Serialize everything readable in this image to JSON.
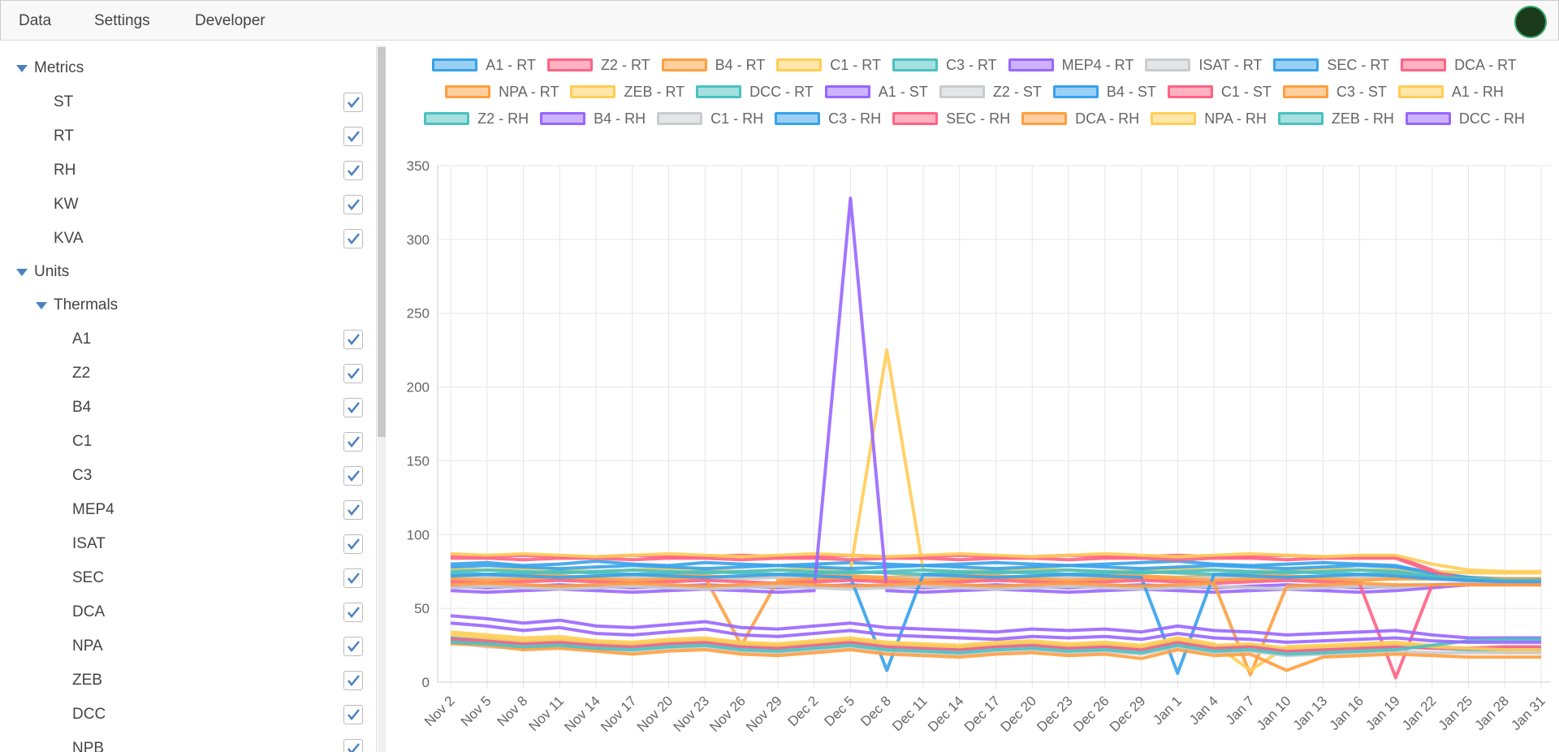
{
  "menu": [
    "Data",
    "Settings",
    "Developer"
  ],
  "sidebar": {
    "metrics": {
      "label": "Metrics",
      "items": [
        "ST",
        "RT",
        "RH",
        "KW",
        "KVA"
      ]
    },
    "units": {
      "label": "Units",
      "groups": [
        {
          "label": "Thermals",
          "items": [
            "A1",
            "Z2",
            "B4",
            "C1",
            "C3",
            "MEP4",
            "ISAT",
            "SEC",
            "DCA",
            "NPA",
            "ZEB",
            "DCC",
            "NPB"
          ]
        }
      ]
    }
  },
  "chart_data": {
    "type": "line",
    "categories": [
      "Nov 2",
      "Nov 5",
      "Nov 8",
      "Nov 11",
      "Nov 14",
      "Nov 17",
      "Nov 20",
      "Nov 23",
      "Nov 26",
      "Nov 29",
      "Dec 2",
      "Dec 5",
      "Dec 8",
      "Dec 11",
      "Dec 14",
      "Dec 17",
      "Dec 20",
      "Dec 23",
      "Dec 26",
      "Dec 29",
      "Jan 1",
      "Jan 4",
      "Jan 7",
      "Jan 10",
      "Jan 13",
      "Jan 16",
      "Jan 19",
      "Jan 22",
      "Jan 25",
      "Jan 28",
      "Jan 31"
    ],
    "ylim": [
      0,
      350
    ],
    "yticks": [
      0,
      50,
      100,
      150,
      200,
      250,
      300,
      350
    ],
    "grid": true,
    "series": [
      {
        "name": "A1 - RT",
        "color": "#36a2eb",
        "values": [
          80,
          81,
          79,
          80,
          82,
          80,
          79,
          81,
          80,
          79,
          80,
          81,
          80,
          79,
          80,
          81,
          80,
          79,
          80,
          81,
          82,
          80,
          79,
          80,
          81,
          80,
          79,
          74,
          71,
          69,
          69
        ]
      },
      {
        "name": "Z2 - RT",
        "color": "#ff6384",
        "values": [
          86,
          85,
          86,
          85,
          85,
          86,
          85,
          85,
          86,
          85,
          85,
          86,
          85,
          85,
          86,
          85,
          85,
          86,
          85,
          85,
          86,
          85,
          85,
          86,
          85,
          85,
          85,
          76,
          70,
          67,
          66
        ]
      },
      {
        "name": "B4 - RT",
        "color": "#ff9f40",
        "values": [
          72,
          71,
          73,
          72,
          71,
          72,
          73,
          72,
          71,
          72,
          73,
          72,
          71,
          72,
          73,
          72,
          71,
          72,
          73,
          72,
          71,
          72,
          73,
          72,
          71,
          72,
          72,
          71,
          70,
          70,
          70
        ]
      },
      {
        "name": "C1 - RT",
        "color": "#ffcd56",
        "values": [
          77,
          76,
          77,
          76,
          75,
          76,
          77,
          76,
          75,
          76,
          77,
          76,
          225,
          76,
          75,
          76,
          77,
          76,
          75,
          76,
          77,
          76,
          75,
          76,
          77,
          76,
          76,
          75,
          74,
          74,
          74
        ]
      },
      {
        "name": "C3 - RT",
        "color": "#4bc0c0",
        "values": [
          74,
          73,
          74,
          75,
          74,
          73,
          74,
          75,
          74,
          73,
          74,
          75,
          74,
          73,
          74,
          75,
          74,
          73,
          74,
          75,
          74,
          73,
          74,
          75,
          74,
          73,
          74,
          72,
          70,
          69,
          69
        ]
      },
      {
        "name": "MEP4 - RT",
        "color": "#9966ff",
        "values": [
          65,
          64,
          65,
          66,
          65,
          64,
          65,
          66,
          65,
          64,
          65,
          66,
          65,
          64,
          65,
          66,
          65,
          64,
          65,
          66,
          65,
          64,
          65,
          66,
          65,
          64,
          65,
          66,
          67,
          68,
          68
        ]
      },
      {
        "name": "ISAT - RT",
        "color": "#c9cbcf",
        "values": [
          70,
          71,
          70,
          69,
          70,
          71,
          70,
          69,
          70,
          71,
          70,
          69,
          70,
          71,
          70,
          69,
          70,
          71,
          70,
          69,
          70,
          71,
          70,
          69,
          70,
          71,
          70,
          70,
          69,
          69,
          69
        ]
      },
      {
        "name": "SEC - RT",
        "color": "#36a2eb",
        "values": [
          78,
          79,
          78,
          77,
          78,
          79,
          78,
          77,
          78,
          79,
          78,
          77,
          78,
          79,
          78,
          77,
          78,
          79,
          78,
          77,
          78,
          79,
          78,
          77,
          78,
          79,
          78,
          74,
          71,
          70,
          70
        ]
      },
      {
        "name": "DCA - RT",
        "color": "#ff6384",
        "values": [
          84,
          84,
          83,
          84,
          84,
          83,
          84,
          84,
          83,
          84,
          84,
          83,
          84,
          84,
          83,
          84,
          84,
          83,
          84,
          84,
          83,
          84,
          84,
          83,
          84,
          84,
          84,
          75,
          69,
          67,
          66
        ]
      },
      {
        "name": "NPA - RT",
        "color": "#ff9f40",
        "values": [
          70,
          69,
          70,
          71,
          70,
          69,
          70,
          71,
          25,
          69,
          70,
          71,
          70,
          69,
          70,
          71,
          70,
          69,
          70,
          71,
          70,
          69,
          70,
          71,
          70,
          69,
          70,
          70,
          70,
          70,
          70
        ]
      },
      {
        "name": "ZEB - RT",
        "color": "#ffcd56",
        "values": [
          87,
          86,
          87,
          86,
          85,
          86,
          87,
          86,
          85,
          86,
          87,
          86,
          85,
          86,
          87,
          86,
          85,
          86,
          87,
          86,
          85,
          86,
          87,
          86,
          85,
          86,
          86,
          80,
          76,
          75,
          75
        ]
      },
      {
        "name": "DCC - RT",
        "color": "#4bc0c0",
        "values": [
          75,
          76,
          75,
          74,
          75,
          76,
          75,
          74,
          75,
          76,
          75,
          74,
          75,
          76,
          75,
          74,
          75,
          76,
          75,
          74,
          75,
          76,
          75,
          74,
          75,
          76,
          75,
          72,
          70,
          69,
          69
        ]
      },
      {
        "name": "A1 - ST",
        "color": "#9966ff",
        "values": [
          62,
          61,
          62,
          63,
          62,
          61,
          62,
          63,
          62,
          61,
          62,
          328,
          62,
          61,
          62,
          63,
          62,
          61,
          62,
          63,
          62,
          61,
          62,
          63,
          62,
          61,
          62,
          64,
          66,
          67,
          67
        ]
      },
      {
        "name": "Z2 - ST",
        "color": "#c9cbcf",
        "values": [
          64,
          65,
          64,
          63,
          64,
          65,
          64,
          63,
          64,
          65,
          64,
          63,
          64,
          65,
          64,
          63,
          64,
          65,
          64,
          63,
          64,
          65,
          64,
          63,
          64,
          65,
          64,
          66,
          67,
          68,
          68
        ]
      },
      {
        "name": "B4 - ST",
        "color": "#36a2eb",
        "values": [
          72,
          73,
          72,
          71,
          72,
          73,
          72,
          71,
          72,
          73,
          72,
          71,
          8,
          73,
          72,
          71,
          72,
          73,
          72,
          71,
          6,
          73,
          72,
          71,
          72,
          73,
          72,
          70,
          69,
          68,
          68
        ]
      },
      {
        "name": "C1 - ST",
        "color": "#ff6384",
        "values": [
          68,
          67,
          68,
          69,
          68,
          67,
          68,
          69,
          68,
          67,
          68,
          69,
          68,
          67,
          68,
          69,
          68,
          67,
          68,
          69,
          68,
          67,
          68,
          69,
          68,
          67,
          3,
          66,
          66,
          66,
          66
        ]
      },
      {
        "name": "C3 - ST",
        "color": "#ff9f40",
        "values": [
          66,
          67,
          66,
          65,
          66,
          67,
          66,
          65,
          66,
          67,
          66,
          65,
          66,
          67,
          66,
          65,
          66,
          67,
          66,
          65,
          66,
          67,
          5,
          65,
          66,
          67,
          66,
          66,
          66,
          66,
          66
        ]
      },
      {
        "name": "A1 - RH",
        "color": "#ffcd56",
        "values": [
          34,
          32,
          30,
          31,
          28,
          27,
          29,
          30,
          27,
          26,
          28,
          30,
          27,
          26,
          25,
          27,
          28,
          26,
          27,
          25,
          30,
          26,
          8,
          24,
          25,
          26,
          27,
          25,
          22,
          20,
          20
        ]
      },
      {
        "name": "Z2 - RH",
        "color": "#4bc0c0",
        "values": [
          28,
          27,
          26,
          27,
          25,
          24,
          26,
          27,
          24,
          23,
          25,
          27,
          24,
          23,
          22,
          24,
          25,
          23,
          24,
          22,
          27,
          23,
          24,
          21,
          22,
          23,
          24,
          23,
          22,
          22,
          22
        ]
      },
      {
        "name": "B4 - RH",
        "color": "#9966ff",
        "values": [
          45,
          43,
          40,
          42,
          38,
          37,
          39,
          41,
          37,
          36,
          38,
          40,
          37,
          36,
          35,
          34,
          36,
          35,
          36,
          34,
          38,
          35,
          34,
          32,
          33,
          34,
          35,
          32,
          30,
          30,
          30
        ]
      },
      {
        "name": "C1 - RH",
        "color": "#c9cbcf",
        "values": [
          27,
          24,
          23,
          25,
          22,
          21,
          23,
          24,
          21,
          20,
          22,
          24,
          21,
          20,
          19,
          21,
          22,
          20,
          21,
          19,
          24,
          20,
          21,
          18,
          19,
          20,
          21,
          20,
          20,
          20,
          20
        ]
      },
      {
        "name": "C3 - RH",
        "color": "#36a2eb",
        "values": [
          30,
          29,
          27,
          28,
          26,
          25,
          27,
          28,
          25,
          24,
          26,
          28,
          25,
          24,
          23,
          25,
          26,
          24,
          25,
          23,
          28,
          24,
          25,
          22,
          23,
          24,
          25,
          24,
          23,
          23,
          23
        ]
      },
      {
        "name": "SEC - RH",
        "color": "#ff6384",
        "values": [
          29,
          28,
          26,
          27,
          25,
          24,
          26,
          27,
          24,
          23,
          25,
          27,
          24,
          23,
          22,
          24,
          25,
          23,
          24,
          22,
          27,
          23,
          24,
          21,
          22,
          23,
          24,
          23,
          23,
          24,
          24
        ]
      },
      {
        "name": "DCA - RH",
        "color": "#ff9f40",
        "values": [
          26,
          25,
          22,
          23,
          21,
          19,
          21,
          22,
          19,
          18,
          20,
          22,
          19,
          18,
          17,
          19,
          20,
          18,
          19,
          16,
          22,
          18,
          19,
          8,
          17,
          18,
          19,
          18,
          17,
          17,
          17
        ]
      },
      {
        "name": "NPA - RH",
        "color": "#ffcd56",
        "values": [
          32,
          30,
          28,
          29,
          27,
          26,
          28,
          29,
          26,
          25,
          27,
          29,
          26,
          25,
          24,
          26,
          27,
          25,
          26,
          24,
          29,
          25,
          26,
          23,
          24,
          25,
          26,
          24,
          23,
          22,
          22
        ]
      },
      {
        "name": "ZEB - RH",
        "color": "#4bc0c0",
        "values": [
          27,
          26,
          24,
          25,
          23,
          22,
          24,
          25,
          22,
          21,
          23,
          25,
          22,
          21,
          20,
          22,
          23,
          21,
          22,
          20,
          25,
          21,
          22,
          19,
          20,
          21,
          22,
          25,
          28,
          29,
          29
        ]
      },
      {
        "name": "DCC - RH",
        "color": "#9966ff",
        "values": [
          40,
          38,
          35,
          37,
          33,
          32,
          34,
          36,
          32,
          31,
          33,
          35,
          32,
          31,
          30,
          29,
          31,
          30,
          31,
          29,
          33,
          30,
          29,
          27,
          28,
          29,
          30,
          28,
          27,
          27,
          27
        ]
      }
    ]
  }
}
